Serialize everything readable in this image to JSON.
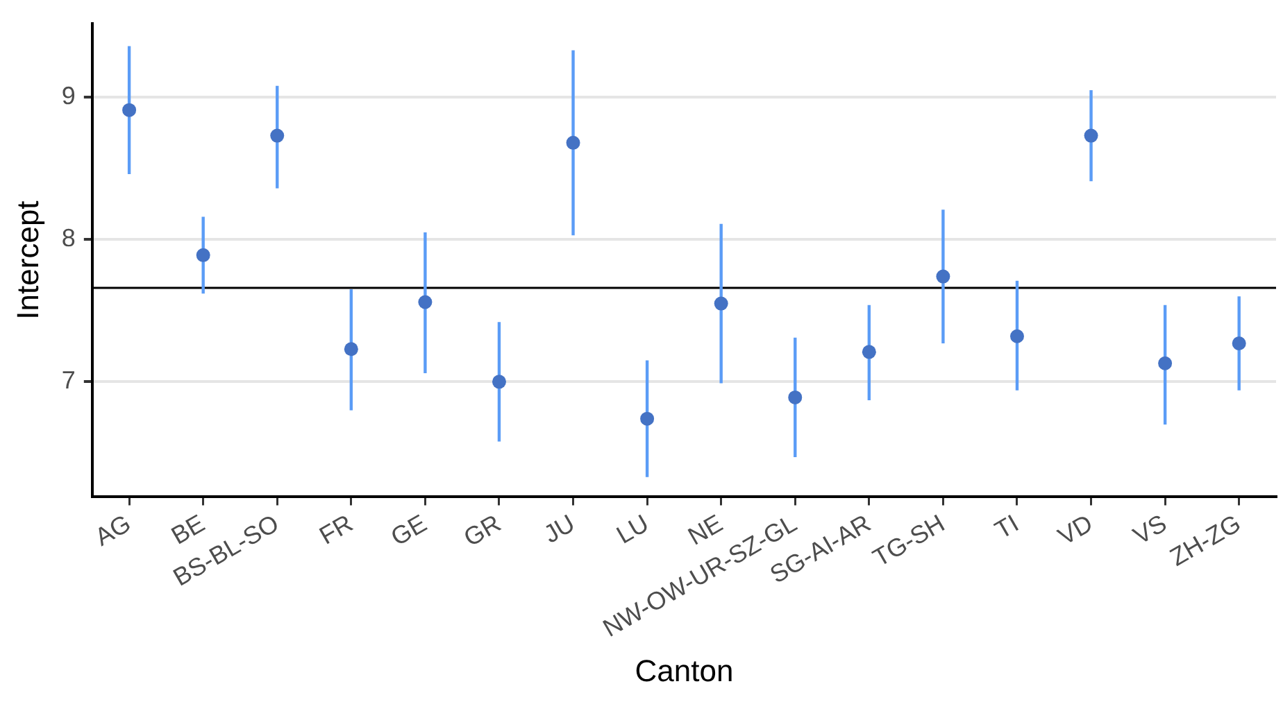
{
  "chart_data": {
    "type": "scatter",
    "xlabel": "Canton",
    "ylabel": "Intercept",
    "categories": [
      "AG",
      "BE",
      "BS-BL-SO",
      "FR",
      "GE",
      "GR",
      "JU",
      "LU",
      "NE",
      "NW-OW-UR-SZ-GL",
      "SG-AI-AR",
      "TG-SH",
      "TI",
      "VD",
      "VS",
      "ZH-ZG"
    ],
    "series": [
      {
        "color": "#4472c4",
        "values": [
          8.91,
          7.89,
          8.73,
          7.23,
          7.56,
          7.0,
          8.68,
          6.74,
          7.55,
          6.89,
          7.21,
          7.74,
          7.32,
          8.73,
          7.13,
          7.27
        ],
        "errors": [
          [
            8.46,
            9.36
          ],
          [
            7.62,
            8.16
          ],
          [
            8.36,
            9.08
          ],
          [
            6.8,
            7.65
          ],
          [
            7.06,
            8.05
          ],
          [
            6.58,
            7.42
          ],
          [
            8.03,
            9.33
          ],
          [
            6.33,
            7.15
          ],
          [
            6.99,
            8.11
          ],
          [
            6.47,
            7.31
          ],
          [
            6.87,
            7.54
          ],
          [
            7.27,
            8.21
          ],
          [
            6.94,
            7.71
          ],
          [
            8.41,
            9.05
          ],
          [
            6.7,
            7.54
          ],
          [
            6.94,
            7.6
          ]
        ]
      }
    ],
    "ylim": [
      6.19,
      9.52
    ],
    "yticks": [
      7,
      8,
      9
    ],
    "ref_lines": [
      {
        "axis": "y",
        "value": 7.66,
        "color": "#000000"
      }
    ],
    "grid": "y",
    "legend": false,
    "marker": "circle"
  }
}
